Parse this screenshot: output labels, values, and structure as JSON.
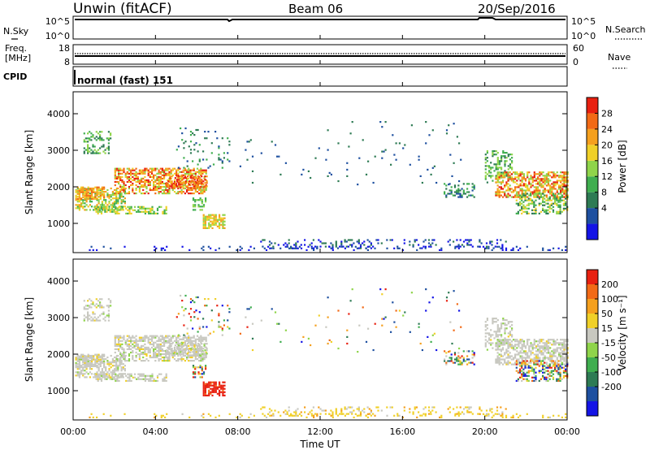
{
  "header": {
    "station": "Unwin (fitACF)",
    "beam": "Beam 06",
    "date": "20/Sep/2016"
  },
  "top_panels": {
    "nsky": {
      "label": "N.Sky",
      "ticks": [
        "10^5",
        "10^0"
      ],
      "right_label": "N.Search",
      "right_ticks": [
        "10^5",
        "10^0"
      ]
    },
    "freq": {
      "label_lines": [
        "Freq.",
        "[MHz]"
      ],
      "ticks": [
        "18",
        "8"
      ],
      "right_label": "Nave",
      "right_ticks": [
        "60",
        "0"
      ]
    },
    "cpid": {
      "label": "CPID",
      "value": "normal (fast) 151"
    }
  },
  "chart_data": [
    {
      "type": "heatmap",
      "name": "power",
      "ylabel": "Slant Range [km]",
      "yticks": [
        "4000",
        "3000",
        "2000",
        "1000"
      ],
      "ylim": [
        200,
        4600
      ],
      "colorbar_label": "Power [dB]",
      "colorbar_ticks": [
        "28",
        "24",
        "20",
        "16",
        "12",
        "8",
        "4"
      ],
      "colors": [
        "#1414e6",
        "#1e50a0",
        "#2e7b54",
        "#3fae4f",
        "#8fd44a",
        "#f0d028",
        "#f5a01e",
        "#f26a16",
        "#e82010"
      ]
    },
    {
      "type": "heatmap",
      "name": "velocity",
      "ylabel": "Slant Range [km]",
      "yticks": [
        "4000",
        "3000",
        "2000",
        "1000"
      ],
      "ylim": [
        200,
        4600
      ],
      "colorbar_label": "Velocity [m s⁻¹]",
      "colorbar_ticks": [
        "200",
        "100",
        "50",
        "15",
        "-15",
        "-50",
        "-100",
        "-200"
      ],
      "colors": [
        "#1414e6",
        "#1e50a0",
        "#2e7b54",
        "#3fae4f",
        "#8fd44a",
        "#c8c8c0",
        "#f0d028",
        "#f5a01e",
        "#f26a16",
        "#e82010"
      ]
    }
  ],
  "xaxis": {
    "ticks": [
      "00:00",
      "04:00",
      "08:00",
      "12:00",
      "16:00",
      "20:00",
      "00:00"
    ],
    "label": "Time UT"
  }
}
